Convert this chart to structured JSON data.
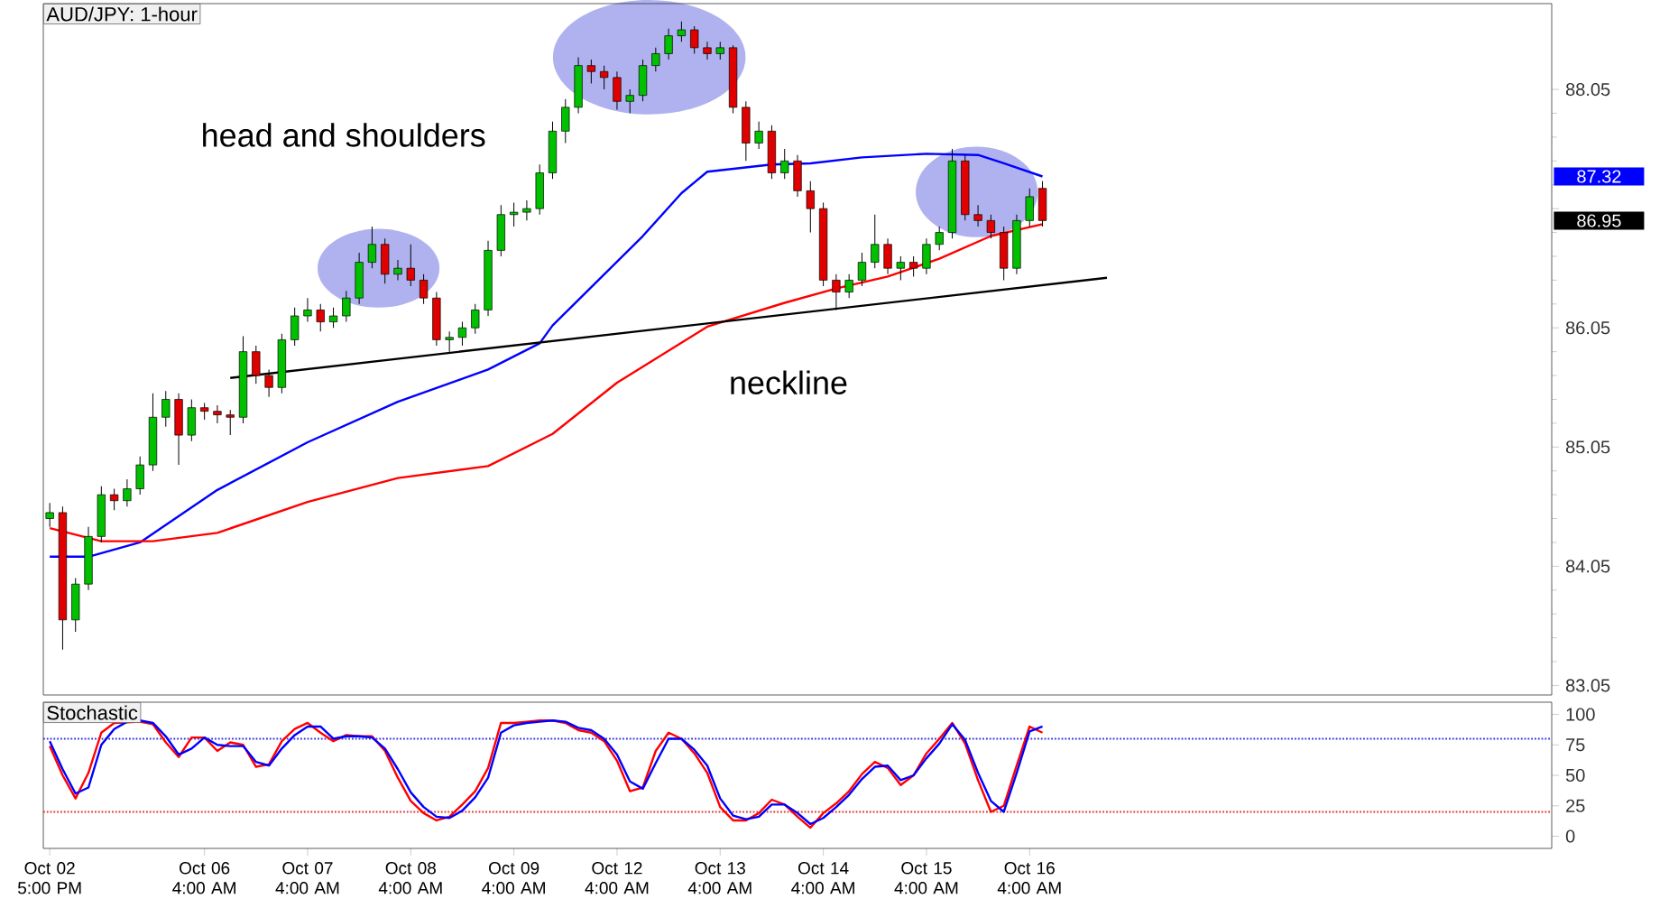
{
  "chart_data": [
    {
      "type": "candlestick",
      "title": "AUD/JPY: 1-hour",
      "ylim": [
        82.97,
        88.77
      ],
      "yticks": [
        83.05,
        84.05,
        85.05,
        86.05,
        {
          "value": 87.05,
          "label": null
        },
        88.05
      ],
      "tick_labels": "y",
      "categories": [
        null,
        null,
        null,
        null,
        null,
        null,
        null,
        null,
        null,
        null,
        null,
        null,
        null,
        null,
        null,
        null,
        null,
        null,
        null,
        null,
        null,
        null,
        null,
        null,
        null,
        null,
        null,
        null,
        null,
        null,
        null,
        null,
        null,
        null,
        null,
        null,
        null,
        null,
        null,
        null,
        null,
        null,
        null,
        null,
        null,
        null,
        null,
        null,
        null,
        null,
        null,
        null,
        null,
        null,
        null,
        null,
        null,
        null,
        null,
        null,
        null,
        null,
        null,
        null,
        null,
        null,
        null,
        null,
        null,
        null,
        null,
        null,
        null,
        null,
        null,
        null,
        null,
        null,
        null,
        null,
        null,
        null,
        null,
        null,
        null,
        null,
        null,
        null,
        null,
        null,
        null,
        null,
        null,
        null,
        null,
        null,
        null,
        null,
        null,
        null,
        null,
        null,
        null,
        null,
        null,
        null,
        null,
        null,
        null,
        null,
        null,
        null,
        null,
        null,
        null,
        null,
        null
      ],
      "annotations": [
        "head and shoulders",
        "neckline",
        "87.32",
        "86.95"
      ],
      "series": [
        {
          "type": "line",
          "color": "#0000ff",
          "values": [
            84.13,
            null,
            null,
            84.13,
            null,
            null,
            null,
            84.25,
            null,
            null,
            null,
            null,
            null,
            84.69,
            null,
            null,
            null,
            null,
            null,
            null,
            85.09,
            null,
            null,
            null,
            null,
            null,
            null,
            85.43,
            null,
            null,
            null,
            null,
            null,
            null,
            85.7,
            null,
            null,
            null,
            85.92,
            86.07,
            null,
            null,
            null,
            null,
            null,
            null,
            86.82,
            null,
            null,
            87.18,
            null,
            87.36,
            null,
            null,
            null,
            null,
            87.42,
            null,
            null,
            87.43,
            null,
            null,
            null,
            87.48,
            null,
            null,
            null,
            null,
            87.51,
            null,
            null,
            null,
            87.5,
            null,
            87.43,
            null,
            null,
            87.32,
            null,
            null,
            null,
            null,
            null,
            null,
            null,
            null,
            null,
            null,
            null,
            null,
            null,
            null,
            null,
            null,
            null,
            null,
            null,
            null,
            null,
            null,
            null,
            null,
            null,
            null,
            null,
            null,
            null,
            null,
            null,
            null,
            null,
            null,
            null,
            null,
            null,
            null,
            null
          ]
        },
        {
          "type": "line",
          "color": "#ff0000",
          "values": [
            84.37,
            null,
            null,
            null,
            84.26,
            null,
            null,
            null,
            84.26,
            null,
            null,
            null,
            null,
            84.33,
            null,
            null,
            null,
            null,
            null,
            null,
            84.59,
            null,
            null,
            null,
            null,
            null,
            null,
            84.79,
            null,
            null,
            null,
            null,
            null,
            null,
            84.89,
            null,
            null,
            null,
            null,
            85.16,
            null,
            null,
            null,
            null,
            85.59,
            null,
            null,
            null,
            null,
            null,
            null,
            86.06,
            null,
            null,
            null,
            null,
            null,
            86.26,
            null,
            null,
            null,
            86.38,
            null,
            null,
            null,
            86.48,
            null,
            null,
            null,
            86.63,
            null,
            null,
            null,
            86.82,
            null,
            null,
            null,
            86.92,
            null,
            null,
            null,
            null,
            null,
            null,
            null,
            null,
            null,
            null,
            null,
            null,
            null,
            null,
            null,
            null,
            null,
            null,
            null,
            null,
            null,
            null,
            null,
            null,
            null,
            null,
            null,
            null,
            null,
            null,
            null,
            null,
            null,
            null,
            null,
            null,
            null,
            null,
            null
          ]
        },
        {
          "type": "line",
          "color": "#000000",
          "values": [
            null,
            null,
            null,
            null,
            null,
            null,
            null,
            null,
            null,
            null,
            null,
            null,
            null,
            null,
            85.63,
            null,
            null,
            null,
            null,
            null,
            null,
            null,
            null,
            null,
            null,
            null,
            null,
            null,
            null,
            null,
            null,
            null,
            null,
            null,
            null,
            null,
            null,
            null,
            null,
            null,
            null,
            null,
            null,
            null,
            null,
            null,
            null,
            null,
            null,
            null,
            null,
            null,
            null,
            null,
            null,
            null,
            null,
            null,
            null,
            null,
            null,
            null,
            null,
            null,
            null,
            null,
            null,
            null,
            null,
            null,
            null,
            null,
            null,
            null,
            null,
            null,
            null,
            null,
            null,
            null,
            null,
            null,
            86.47,
            null,
            null,
            null,
            null,
            null,
            null,
            null,
            null,
            null,
            null,
            null,
            null,
            null,
            null,
            null,
            null,
            null,
            null,
            null,
            null,
            null,
            null,
            null,
            null,
            null,
            null,
            null,
            null,
            null,
            null,
            null,
            null,
            null,
            null
          ]
        },
        {
          "type": "candlestick",
          "ohlc": [
            [
              84.45,
              84.58,
              84.38,
              84.5
            ],
            [
              84.5,
              84.55,
              83.35,
              83.6
            ],
            [
              83.6,
              83.95,
              83.5,
              83.9
            ],
            [
              83.9,
              84.38,
              83.85,
              84.3
            ],
            [
              84.3,
              84.72,
              84.25,
              84.65
            ],
            [
              84.65,
              84.7,
              84.52,
              84.6
            ],
            [
              84.6,
              84.78,
              84.55,
              84.7
            ],
            [
              84.7,
              84.97,
              84.65,
              84.9
            ],
            [
              84.9,
              85.5,
              84.85,
              85.3
            ],
            [
              85.3,
              85.52,
              85.22,
              85.45
            ],
            [
              85.45,
              85.5,
              84.9,
              85.15
            ],
            [
              85.15,
              85.45,
              85.1,
              85.38
            ],
            [
              85.38,
              85.42,
              85.28,
              85.35
            ],
            [
              85.35,
              85.4,
              85.25,
              85.32
            ],
            [
              85.32,
              85.36,
              85.15,
              85.3
            ],
            [
              85.3,
              85.98,
              85.25,
              85.85
            ],
            [
              85.85,
              85.9,
              85.58,
              85.65
            ],
            [
              85.65,
              85.7,
              85.47,
              85.55
            ],
            [
              85.55,
              86.0,
              85.5,
              85.95
            ],
            [
              85.95,
              86.22,
              85.9,
              86.15
            ],
            [
              86.15,
              86.3,
              86.1,
              86.2
            ],
            [
              86.2,
              86.25,
              86.02,
              86.1
            ],
            [
              86.1,
              86.22,
              86.05,
              86.15
            ],
            [
              86.15,
              86.36,
              86.1,
              86.3
            ],
            [
              86.3,
              86.68,
              86.25,
              86.6
            ],
            [
              86.6,
              86.9,
              86.55,
              86.75
            ],
            [
              86.75,
              86.8,
              86.42,
              86.5
            ],
            [
              86.5,
              86.62,
              86.45,
              86.55
            ],
            [
              86.55,
              86.75,
              86.4,
              86.45
            ],
            [
              86.45,
              86.5,
              86.25,
              86.3
            ],
            [
              86.3,
              86.35,
              85.9,
              85.95
            ],
            [
              85.95,
              86.02,
              85.85,
              85.97
            ],
            [
              85.97,
              86.1,
              85.9,
              86.05
            ],
            [
              86.05,
              86.25,
              86.0,
              86.2
            ],
            [
              86.2,
              86.78,
              86.15,
              86.7
            ],
            [
              86.7,
              87.08,
              86.65,
              87.0
            ],
            [
              87.0,
              87.1,
              86.9,
              87.02
            ],
            [
              87.02,
              87.12,
              86.95,
              87.05
            ],
            [
              87.05,
              87.42,
              87.0,
              87.35
            ],
            [
              87.35,
              87.78,
              87.3,
              87.7
            ],
            [
              87.7,
              87.97,
              87.6,
              87.9
            ],
            [
              87.9,
              88.32,
              87.85,
              88.25
            ],
            [
              88.25,
              88.3,
              88.1,
              88.2
            ],
            [
              88.2,
              88.25,
              88.05,
              88.15
            ],
            [
              88.15,
              88.2,
              87.88,
              87.95
            ],
            [
              87.95,
              88.05,
              87.85,
              88.0
            ],
            [
              88.0,
              88.3,
              87.95,
              88.25
            ],
            [
              88.25,
              88.4,
              88.2,
              88.35
            ],
            [
              88.35,
              88.56,
              88.3,
              88.5
            ],
            [
              88.5,
              88.62,
              88.45,
              88.55
            ],
            [
              88.55,
              88.58,
              88.35,
              88.4
            ],
            [
              88.4,
              88.45,
              88.3,
              88.35
            ],
            [
              88.35,
              88.45,
              88.3,
              88.4
            ],
            [
              88.4,
              88.42,
              87.85,
              87.9
            ],
            [
              87.9,
              87.95,
              87.45,
              87.6
            ],
            [
              87.6,
              87.78,
              87.55,
              87.7
            ],
            [
              87.7,
              87.75,
              87.3,
              87.35
            ],
            [
              87.35,
              87.55,
              87.3,
              87.45
            ],
            [
              87.45,
              87.5,
              87.15,
              87.2
            ],
            [
              87.2,
              87.28,
              86.85,
              87.05
            ],
            [
              87.05,
              87.1,
              86.4,
              86.45
            ],
            [
              86.45,
              86.5,
              86.2,
              86.35
            ],
            [
              86.35,
              86.5,
              86.3,
              86.45
            ],
            [
              86.45,
              86.68,
              86.4,
              86.6
            ],
            [
              86.6,
              87.0,
              86.55,
              86.75
            ],
            [
              86.75,
              86.8,
              86.5,
              86.55
            ],
            [
              86.55,
              86.65,
              86.45,
              86.6
            ],
            [
              86.6,
              86.65,
              86.48,
              86.55
            ],
            [
              86.55,
              86.8,
              86.5,
              86.75
            ],
            [
              86.75,
              86.9,
              86.7,
              86.85
            ],
            [
              86.85,
              87.55,
              86.8,
              87.45
            ],
            [
              87.45,
              87.5,
              86.95,
              87.0
            ],
            [
              87.0,
              87.08,
              86.9,
              86.95
            ],
            [
              86.95,
              87.0,
              86.8,
              86.85
            ],
            [
              86.85,
              86.9,
              86.45,
              86.55
            ],
            [
              86.55,
              87.0,
              86.5,
              86.95
            ],
            [
              86.95,
              87.22,
              86.9,
              87.15
            ],
            [
              87.22,
              87.28,
              86.9,
              86.95
            ],
            null,
            null,
            null,
            null,
            null,
            null,
            null,
            null,
            null,
            null,
            null,
            null,
            null,
            null,
            null,
            null,
            null,
            null,
            null,
            null,
            null,
            null,
            null,
            null,
            null,
            null,
            null,
            null,
            null,
            null,
            null,
            null,
            null,
            null,
            null,
            null,
            null,
            null,
            null
          ],
          "colors": [
            "#00c000",
            "#e00000",
            "#00c000",
            "#00c000",
            "#00c000",
            "#e00000",
            "#00c000",
            "#00c000",
            "#00c000",
            "#00c000",
            "#e00000",
            "#00c000",
            "#e00000",
            "#e00000",
            "#e00000",
            "#00c000",
            "#e00000",
            "#e00000",
            "#00c000",
            "#00c000",
            "#00c000",
            "#e00000",
            "#00c000",
            "#00c000",
            "#00c000",
            "#00c000",
            "#e00000",
            "#00c000",
            "#e00000",
            "#e00000",
            "#e00000",
            "#00c000",
            "#00c000",
            "#00c000",
            "#00c000",
            "#00c000",
            "#00c000",
            "#00c000",
            "#00c000",
            "#00c000",
            "#00c000",
            "#00c000",
            "#e00000",
            "#e00000",
            "#e00000",
            "#00c000",
            "#00c000",
            "#00c000",
            "#00c000",
            "#00c000",
            "#e00000",
            "#e00000",
            "#00c000",
            "#e00000",
            "#e00000",
            "#00c000",
            "#e00000",
            "#00c000",
            "#e00000",
            "#e00000",
            "#e00000",
            "#e00000",
            "#00c000",
            "#00c000",
            "#00c000",
            "#e00000",
            "#00c000",
            "#e00000",
            "#00c000",
            "#00c000",
            "#00c000",
            "#e00000",
            "#e00000",
            "#e00000",
            "#e00000",
            "#00c000",
            "#00c000",
            "#e00000",
            null,
            null,
            null,
            null,
            null,
            null,
            null,
            null,
            null,
            null,
            null,
            null,
            null,
            null,
            null,
            null,
            null,
            null,
            null,
            null,
            null,
            null,
            null,
            null,
            null,
            null,
            null,
            null,
            null,
            null,
            null,
            null,
            null,
            null,
            null,
            null,
            null,
            null,
            null
          ]
        }
      ]
    },
    {
      "type": "line",
      "title": "Stochastic",
      "ylim": [
        -10,
        110
      ],
      "yticks": [
        0,
        25,
        50,
        75,
        100
      ],
      "categories": [
        "Oct 02 5:00 PM",
        null,
        null,
        null,
        null,
        null,
        null,
        null,
        null,
        null,
        null,
        null,
        "Oct 06 4:00 AM",
        null,
        null,
        null,
        null,
        null,
        null,
        null,
        "Oct 07 4:00 AM",
        null,
        null,
        null,
        null,
        null,
        null,
        null,
        "Oct 08 4:00 AM",
        null,
        null,
        null,
        null,
        null,
        null,
        null,
        "Oct 09 4:00 AM",
        null,
        null,
        null,
        null,
        null,
        null,
        null,
        "Oct 12 4:00 AM",
        null,
        null,
        null,
        null,
        null,
        null,
        null,
        "Oct 13 4:00 AM",
        null,
        null,
        null,
        null,
        null,
        null,
        null,
        "Oct 14 4:00 AM",
        null,
        null,
        null,
        null,
        null,
        null,
        null,
        "Oct 15 4:00 AM",
        null,
        null,
        null,
        null,
        null,
        null,
        null,
        "Oct 16 4:00 AM",
        null,
        null,
        null,
        null,
        null,
        null,
        null,
        null,
        null,
        null,
        null,
        null,
        null,
        null,
        null,
        null,
        null,
        null,
        null,
        null,
        null,
        null,
        null,
        null,
        null,
        null,
        null,
        null,
        null,
        null,
        null,
        null,
        null,
        null,
        null,
        null,
        null,
        null,
        null,
        null
      ],
      "ref_lines": [
        {
          "axis": "y",
          "value": 80,
          "color": "#3333dd",
          "line_style": "dotted"
        },
        {
          "axis": "y",
          "value": 20,
          "color": "#dd3333",
          "line_style": "dotted"
        }
      ],
      "series": [
        {
          "color": "#ff0000",
          "values": [
            74,
            50,
            31,
            52,
            85,
            93,
            null,
            94,
            92,
            77,
            65,
            81,
            81,
            70,
            77,
            75,
            57,
            59,
            78,
            88,
            93,
            85,
            78,
            83,
            82,
            82,
            70,
            48,
            29,
            19,
            13,
            16,
            26,
            37,
            56,
            93,
            93,
            94,
            95,
            95,
            93,
            87,
            85,
            78,
            62,
            37,
            40,
            70,
            85,
            80,
            68,
            52,
            24,
            13,
            13,
            19,
            30,
            26,
            16,
            7,
            19,
            27,
            37,
            51,
            61,
            56,
            42,
            50,
            68,
            80,
            93,
            76,
            46,
            20,
            25,
            58,
            90,
            85,
            null,
            null,
            null,
            null,
            null,
            null,
            null,
            null,
            null,
            null,
            null,
            null,
            null,
            null,
            null,
            null,
            null,
            null,
            null,
            null,
            null,
            null,
            null,
            null,
            null,
            null,
            null,
            null,
            null,
            null,
            null,
            null,
            null,
            null,
            null,
            null,
            null,
            null,
            null
          ]
        },
        {
          "color": "#0000ff",
          "values": [
            78,
            55,
            35,
            40,
            75,
            88,
            94,
            95,
            93,
            82,
            67,
            72,
            81,
            75,
            74,
            74,
            61,
            58,
            72,
            83,
            90,
            90,
            80,
            82,
            82,
            81,
            72,
            55,
            36,
            24,
            16,
            15,
            21,
            32,
            48,
            85,
            91,
            93,
            94,
            95,
            94,
            89,
            87,
            80,
            67,
            45,
            39,
            60,
            80,
            80,
            71,
            58,
            31,
            17,
            14,
            16,
            26,
            26,
            19,
            10,
            15,
            24,
            34,
            47,
            57,
            58,
            46,
            50,
            64,
            76,
            92,
            79,
            52,
            29,
            20,
            52,
            86,
            90,
            null,
            null,
            null,
            null,
            null,
            null,
            null,
            null,
            null,
            null,
            null,
            null,
            null,
            null,
            null,
            null,
            null,
            null,
            null,
            null,
            null,
            null,
            null,
            null,
            null,
            null,
            null,
            null,
            null,
            null,
            null,
            null,
            null,
            null,
            null,
            null,
            null,
            null,
            null
          ]
        }
      ]
    }
  ]
}
